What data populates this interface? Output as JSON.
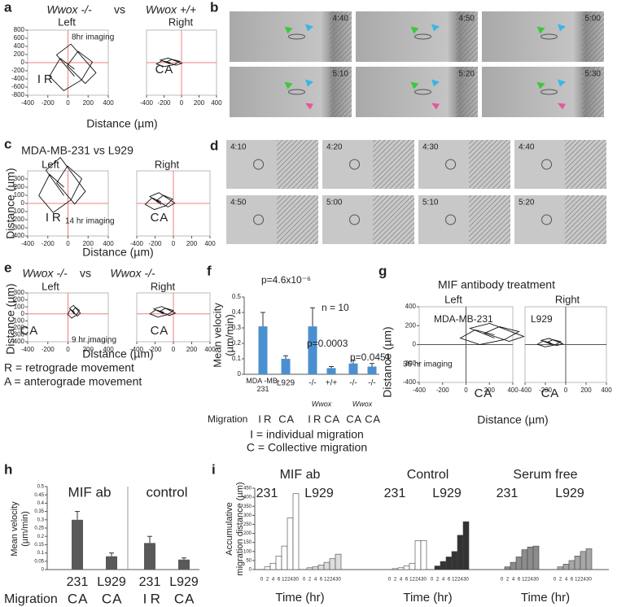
{
  "letter_colors": {
    "I": "#222222",
    "C": "#222222",
    "R": "#e0202a",
    "A": "#1f3fd0"
  },
  "panels": {
    "a": {
      "letter": "a",
      "title": [
        "Wwox -/-",
        "vs",
        "Wwox +/+"
      ],
      "left": "Left",
      "right": "Right",
      "note": "8hr imaging",
      "xlabel": "Distance (µm)",
      "tags_left": [
        "I",
        "R"
      ],
      "tags_right": [
        "C",
        "A"
      ],
      "xlim": [
        -400,
        400
      ],
      "xticks": [
        -400,
        -200,
        0,
        200,
        400
      ],
      "ylim": [
        -800,
        800
      ],
      "yticks": [
        800,
        600,
        400,
        200,
        0,
        -200,
        -400,
        -600,
        -800
      ],
      "cross_color": "#f08080"
    },
    "b": {
      "letter": "b",
      "times": [
        "4:40",
        "4:50",
        "5:00",
        "5:10",
        "5:20",
        "5:30"
      ]
    },
    "c": {
      "letter": "c",
      "title": [
        "MDA-MB-231 vs L929"
      ],
      "left": "Left",
      "right": "Right",
      "note": "14 hr imaging",
      "xlabel": "Distance (µm)",
      "ylabel": "Distance (µm)",
      "tags_left": [
        "I",
        "R"
      ],
      "tags_right": [
        "C",
        "A"
      ],
      "xlim": [
        -400,
        400
      ],
      "xticks": [
        -400,
        -200,
        0,
        200,
        400
      ],
      "ylim": [
        -400,
        400
      ],
      "yticks": [
        300,
        200,
        100,
        0,
        -100,
        -200,
        -300,
        -400
      ],
      "cross_color": "#f08080"
    },
    "d": {
      "letter": "d",
      "times": [
        "4:10",
        "4:20",
        "4:30",
        "4:40",
        "4:50",
        "5:00",
        "5:10",
        "5:20"
      ]
    },
    "e": {
      "letter": "e",
      "title": [
        "Wwox -/-",
        "vs",
        "Wwox -/-"
      ],
      "left": "Left",
      "right": "Right",
      "note": "9 hr imaging",
      "xlabel": "Distance (µm)",
      "ylabel": "Distance (µm)",
      "tags_left": [
        "C",
        "A"
      ],
      "tags_right": [
        "C",
        "A"
      ],
      "xlim": [
        -400,
        400
      ],
      "xticks": [
        -400,
        -200,
        0,
        200,
        400
      ],
      "ylim": [
        -400,
        300
      ],
      "yticks": [
        300,
        200,
        100,
        0,
        -100,
        -200,
        -300,
        -400
      ],
      "cross_color": "#f08080"
    },
    "g": {
      "letter": "g",
      "title": [
        "MIF antibody treatment"
      ],
      "left": "Left",
      "right": "Right",
      "note": "36 hr imaging",
      "left_name": "MDA-MB-231",
      "right_name": "L929",
      "xlabel": "Distance (µm)",
      "ylabel": "Distance (µm)",
      "tags_left": [
        "C",
        "A"
      ],
      "tags_right": [
        "C",
        "A"
      ],
      "xlim": [
        -400,
        400
      ],
      "xticks": [
        -400,
        -200,
        0,
        200,
        400
      ],
      "ylim": [
        -400,
        400
      ],
      "yticks": [
        400,
        200,
        0,
        -200,
        -400
      ],
      "cross_color": "#555555"
    }
  },
  "legend": {
    "r": "R = retrograde movement",
    "a": "A = anterograde movement",
    "i": "I = individual migration",
    "c": "C = Collective migration"
  },
  "chart_data": [
    {
      "type": "bar",
      "letter": "f",
      "ylabel": [
        "Mean velocity",
        "(µm/min)"
      ],
      "categories": [
        "MDA -MB-231",
        "L929",
        "-/-",
        "+/+",
        "-/-",
        "-/-"
      ],
      "group_labels": [
        "Wwox",
        "Wwox"
      ],
      "values": [
        0.31,
        0.1,
        0.31,
        0.04,
        0.07,
        0.05
      ],
      "errors": [
        0.09,
        0.02,
        0.12,
        0.01,
        0.02,
        0.02
      ],
      "color": "#4a90d0",
      "ylim": [
        0,
        0.5
      ],
      "yticks": [
        0,
        0.1,
        0.2,
        0.3,
        0.4,
        0.5
      ],
      "migration_label": "Migration",
      "migration": [
        [
          "I",
          "R"
        ],
        [
          "C",
          "A"
        ],
        [
          "I",
          "R"
        ],
        [
          "C",
          "A"
        ],
        [
          "C",
          "A"
        ],
        [
          "C",
          "A"
        ]
      ],
      "annotations": [
        "p=4.6x10⁻⁶",
        "n = 10",
        "p=0.0003",
        "p=0.0451"
      ]
    },
    {
      "type": "bar",
      "letter": "h",
      "ylabel": [
        "Mean velocity",
        "(µm/min)"
      ],
      "groups": [
        "MIF ab",
        "control"
      ],
      "categories": [
        "231",
        "L929",
        "231",
        "L929"
      ],
      "values": [
        0.3,
        0.08,
        0.16,
        0.06
      ],
      "errors": [
        0.05,
        0.02,
        0.04,
        0.01
      ],
      "color": "#595959",
      "ylim": [
        0,
        0.5
      ],
      "yticks": [
        0,
        0.05,
        0.1,
        0.15,
        0.2,
        0.25,
        0.3,
        0.35,
        0.4,
        0.45,
        0.5
      ],
      "migration_label": "Migration",
      "migration": [
        [
          "C",
          "A"
        ],
        [
          "C",
          "A"
        ],
        [
          "I",
          "R"
        ],
        [
          "C",
          "A"
        ]
      ]
    },
    {
      "type": "grouped-bar",
      "letter": "i",
      "ylabel": [
        "Accumulative",
        "migration distance (µm)"
      ],
      "xlabel": "Time (hr)",
      "categories": [
        0,
        2,
        4,
        6,
        12,
        24,
        30
      ],
      "ylim": [
        0,
        450
      ],
      "yticks": [
        0,
        50,
        100,
        150,
        200,
        250,
        300,
        350,
        400,
        450
      ],
      "groups": [
        {
          "name": "MIF ab",
          "series": [
            {
              "name": "231",
              "color": "#ffffff",
              "values": [
                0,
                15,
                35,
                75,
                130,
                285,
                420
              ]
            },
            {
              "name": "L929",
              "color": "#dddddd",
              "values": [
                0,
                10,
                15,
                25,
                40,
                60,
                85
              ]
            }
          ]
        },
        {
          "name": "Control",
          "series": [
            {
              "name": "231",
              "color": "#ffffff",
              "values": [
                0,
                5,
                10,
                20,
                35,
                160,
                160
              ]
            },
            {
              "name": "L929",
              "color": "#333333",
              "values": [
                0,
                20,
                45,
                70,
                100,
                190,
                265
              ]
            }
          ]
        },
        {
          "name": "Serum free",
          "series": [
            {
              "name": "231",
              "color": "#8c8c8c",
              "values": [
                0,
                15,
                40,
                70,
                110,
                125,
                130
              ]
            },
            {
              "name": "L929",
              "color": "#a6a6a6",
              "values": [
                0,
                15,
                30,
                50,
                75,
                100,
                115
              ]
            }
          ]
        }
      ]
    }
  ]
}
